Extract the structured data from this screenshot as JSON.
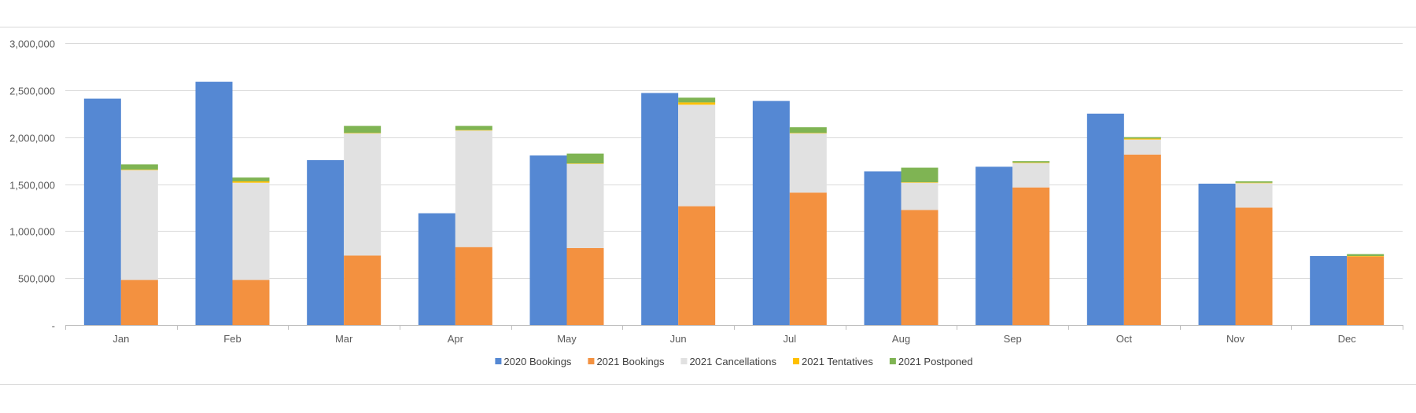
{
  "chart_data": {
    "type": "bar",
    "stacking": "grouped-stacked",
    "categories": [
      "Jan",
      "Feb",
      "Mar",
      "Apr",
      "May",
      "Jun",
      "Jul",
      "Aug",
      "Sep",
      "Oct",
      "Nov",
      "Dec"
    ],
    "ylim": [
      0,
      3000000
    ],
    "yticks": [
      0,
      500000,
      1000000,
      1500000,
      2000000,
      2500000,
      3000000
    ],
    "ytick_labels": [
      "-",
      "500,000",
      "1,000,000",
      "1,500,000",
      "2,000,000",
      "2,500,000",
      "3,000,000"
    ],
    "grid": true,
    "legend_position": "bottom",
    "series": [
      {
        "name": "2020 Bookings",
        "stack": "2020",
        "color": "#5588d3",
        "values": [
          2410000,
          2590000,
          1755000,
          1190000,
          1805000,
          2470000,
          2385000,
          1635000,
          1685000,
          2250000,
          1505000,
          735000
        ]
      },
      {
        "name": "2021 Bookings",
        "stack": "2021",
        "color": "#f39140",
        "values": [
          480000,
          480000,
          740000,
          830000,
          820000,
          1265000,
          1410000,
          1225000,
          1465000,
          1815000,
          1250000,
          730000
        ]
      },
      {
        "name": "2021 Cancellations",
        "stack": "2021",
        "color": "#e1e1e1",
        "values": [
          1170000,
          1035000,
          1300000,
          1240000,
          895000,
          1080000,
          630000,
          290000,
          260000,
          160000,
          260000,
          0
        ]
      },
      {
        "name": "2021 Tentatives",
        "stack": "2021",
        "color": "#ffc000",
        "values": [
          5000,
          15000,
          5000,
          5000,
          5000,
          25000,
          5000,
          5000,
          5000,
          10000,
          5000,
          5000
        ]
      },
      {
        "name": "2021 Postponed",
        "stack": "2021",
        "color": "#7fb453",
        "values": [
          55000,
          40000,
          75000,
          45000,
          105000,
          50000,
          60000,
          155000,
          15000,
          15000,
          15000,
          20000
        ]
      }
    ]
  }
}
